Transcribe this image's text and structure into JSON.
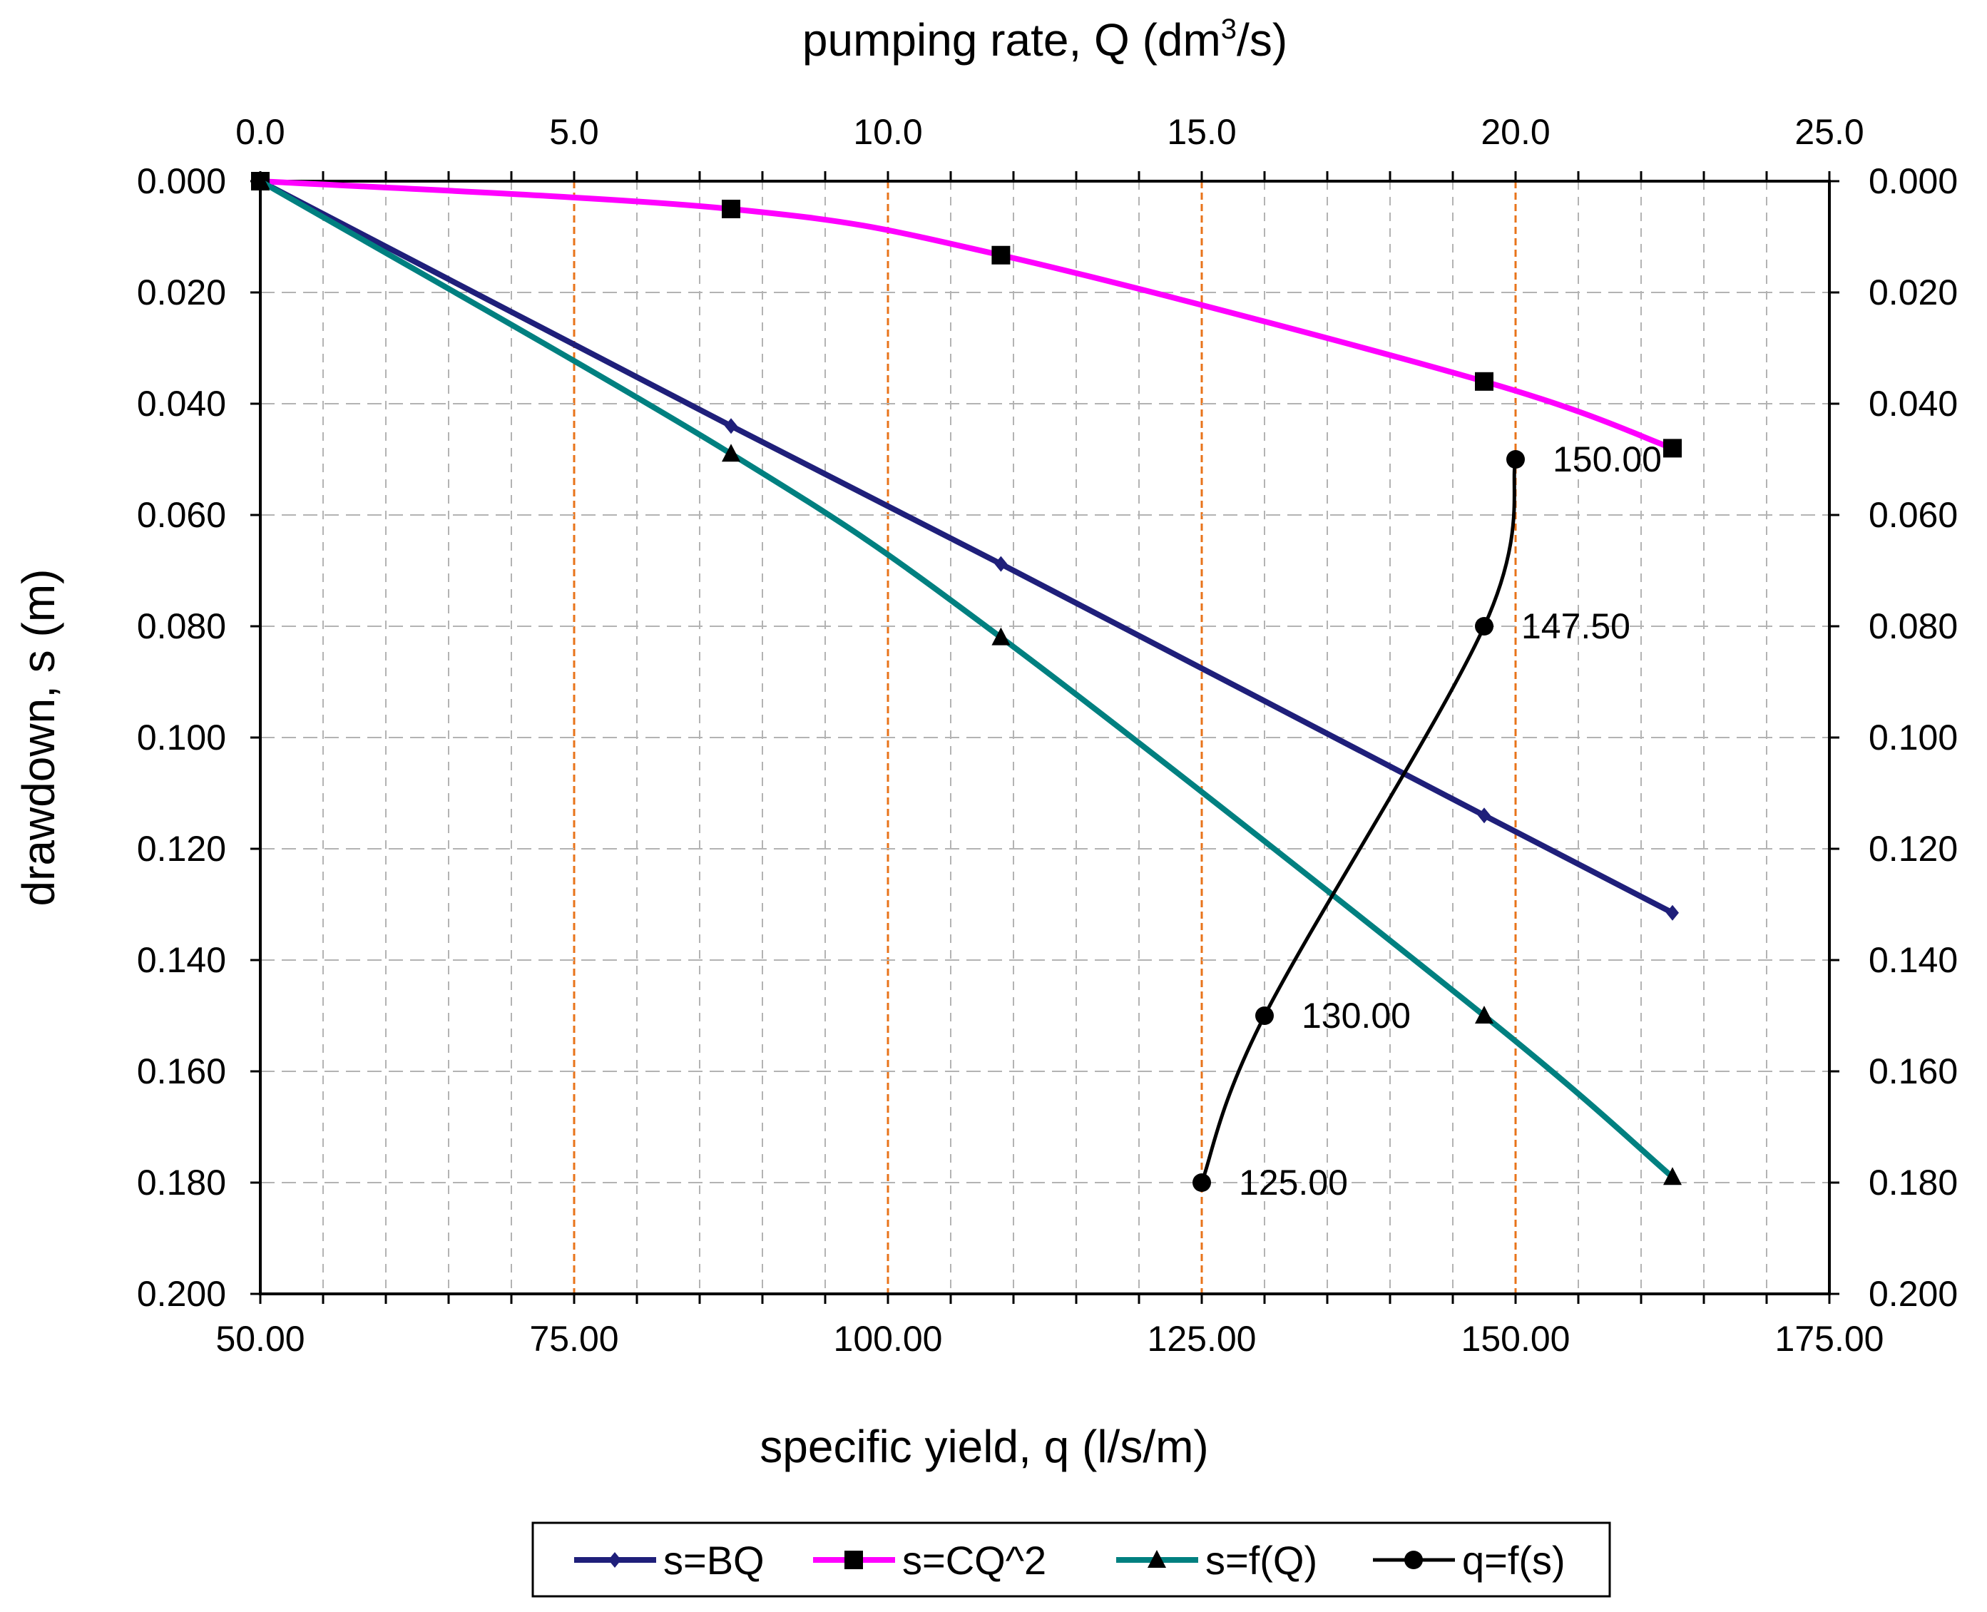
{
  "chart_data": {
    "type": "line",
    "axes": {
      "bottom": {
        "label": "specific yield, q (l/s/m)",
        "min": 50,
        "max": 175,
        "tick_labels": [
          "50.00",
          "75.00",
          "100.00",
          "125.00",
          "150.00",
          "175.00"
        ]
      },
      "top": {
        "label_prefix": "pumping rate, Q (dm",
        "label_sup": "3",
        "label_suffix": "/s)",
        "min": 0,
        "max": 25,
        "tick_labels": [
          "0.0",
          "5.0",
          "10.0",
          "15.0",
          "20.0",
          "25.0"
        ]
      },
      "left": {
        "label": "drawdown, s (m)",
        "min": 0,
        "max": 0.2,
        "reversed": true,
        "tick_labels": [
          "0.000",
          "0.020",
          "0.040",
          "0.060",
          "0.080",
          "0.100",
          "0.120",
          "0.140",
          "0.160",
          "0.180",
          "0.200"
        ]
      },
      "right": {
        "min": 0,
        "max": 0.2,
        "reversed": true,
        "tick_labels": [
          "0.000",
          "0.020",
          "0.040",
          "0.060",
          "0.080",
          "0.100",
          "0.120",
          "0.140",
          "0.160",
          "0.180",
          "0.200"
        ]
      }
    },
    "grid": {
      "minor_step_q": 5,
      "highlight_step_q": 25,
      "highlight_color": "#e8731a",
      "minor_color": "#b3b3b3"
    },
    "series": [
      {
        "name": "s=BQ",
        "axis_x": "top",
        "marker": "diamond",
        "color": "#1f1f7a",
        "points": [
          [
            0,
            0
          ],
          [
            7.5,
            0.044
          ],
          [
            11.8,
            0.0688
          ],
          [
            19.5,
            0.114
          ],
          [
            22.5,
            0.1315
          ]
        ]
      },
      {
        "name": "s=CQ^2",
        "axis_x": "top",
        "marker": "square",
        "color": "#ff00ff",
        "points": [
          [
            0,
            0
          ],
          [
            7.5,
            0.005
          ],
          [
            11.8,
            0.0133
          ],
          [
            19.5,
            0.036
          ],
          [
            22.5,
            0.048
          ]
        ]
      },
      {
        "name": "s=f(Q)",
        "axis_x": "top",
        "marker": "triangle",
        "color": "#008080",
        "points": [
          [
            0,
            0
          ],
          [
            7.5,
            0.049
          ],
          [
            11.8,
            0.082
          ],
          [
            19.5,
            0.15
          ],
          [
            22.5,
            0.179
          ]
        ]
      },
      {
        "name": "q=f(s)",
        "axis_x": "bottom",
        "marker": "circle",
        "color": "#000000",
        "points": [
          [
            125.0,
            0.18
          ],
          [
            130.0,
            0.15
          ],
          [
            147.5,
            0.08
          ],
          [
            150.0,
            0.05
          ]
        ],
        "point_labels": [
          "125.00",
          "130.00",
          "147.50",
          "150.00"
        ]
      }
    ],
    "legend": {
      "placement": "bottom-center"
    }
  }
}
